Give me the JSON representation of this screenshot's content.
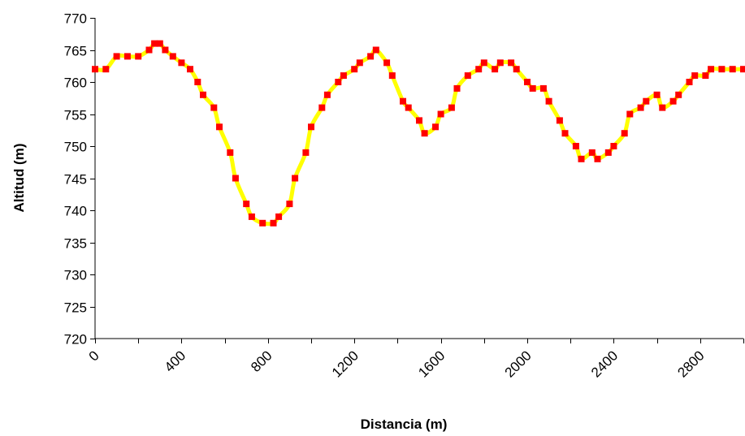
{
  "chart_data": {
    "type": "line",
    "title": "",
    "xlabel": "Distancia (m)",
    "ylabel": "Altitud (m)",
    "xlim": [
      0,
      3000
    ],
    "ylim": [
      720,
      770
    ],
    "x_ticks": [
      0,
      400,
      800,
      1200,
      1600,
      2000,
      2400,
      2800
    ],
    "y_ticks": [
      720,
      725,
      730,
      735,
      740,
      745,
      750,
      755,
      760,
      765,
      770
    ],
    "grid": false,
    "legend": "none",
    "line_color": "#ffff00",
    "marker_color": "#ff0000",
    "series": [
      {
        "x": [
          0,
          50,
          100,
          150,
          200,
          250,
          275,
          300,
          325,
          360,
          400,
          440,
          475,
          500,
          550,
          575,
          625,
          650,
          700,
          725,
          775,
          825,
          850,
          900,
          925,
          975,
          1000,
          1050,
          1075,
          1125,
          1150,
          1200,
          1225,
          1275,
          1300,
          1350,
          1375,
          1425,
          1450,
          1500,
          1525,
          1575,
          1600,
          1650,
          1675,
          1725,
          1775,
          1800,
          1850,
          1875,
          1925,
          1950,
          2000,
          2025,
          2075,
          2100,
          2150,
          2175,
          2225,
          2250,
          2300,
          2325,
          2375,
          2400,
          2450,
          2475,
          2525,
          2550,
          2600,
          2625,
          2675,
          2700,
          2750,
          2775,
          2825,
          2850,
          2900,
          2950,
          3000
        ],
        "values": [
          762,
          762,
          764,
          764,
          764,
          765,
          766,
          766,
          765,
          764,
          763,
          762,
          760,
          758,
          756,
          753,
          749,
          745,
          741,
          739,
          738,
          738,
          739,
          741,
          745,
          749,
          753,
          756,
          758,
          760,
          761,
          762,
          763,
          764,
          765,
          763,
          761,
          757,
          756,
          754,
          752,
          753,
          755,
          756,
          759,
          761,
          762,
          763,
          762,
          763,
          763,
          762,
          760,
          759,
          759,
          757,
          754,
          752,
          750,
          748,
          749,
          748,
          749,
          750,
          752,
          755,
          756,
          757,
          758,
          756,
          757,
          758,
          760,
          761,
          761,
          762,
          762,
          762,
          762
        ]
      }
    ]
  }
}
